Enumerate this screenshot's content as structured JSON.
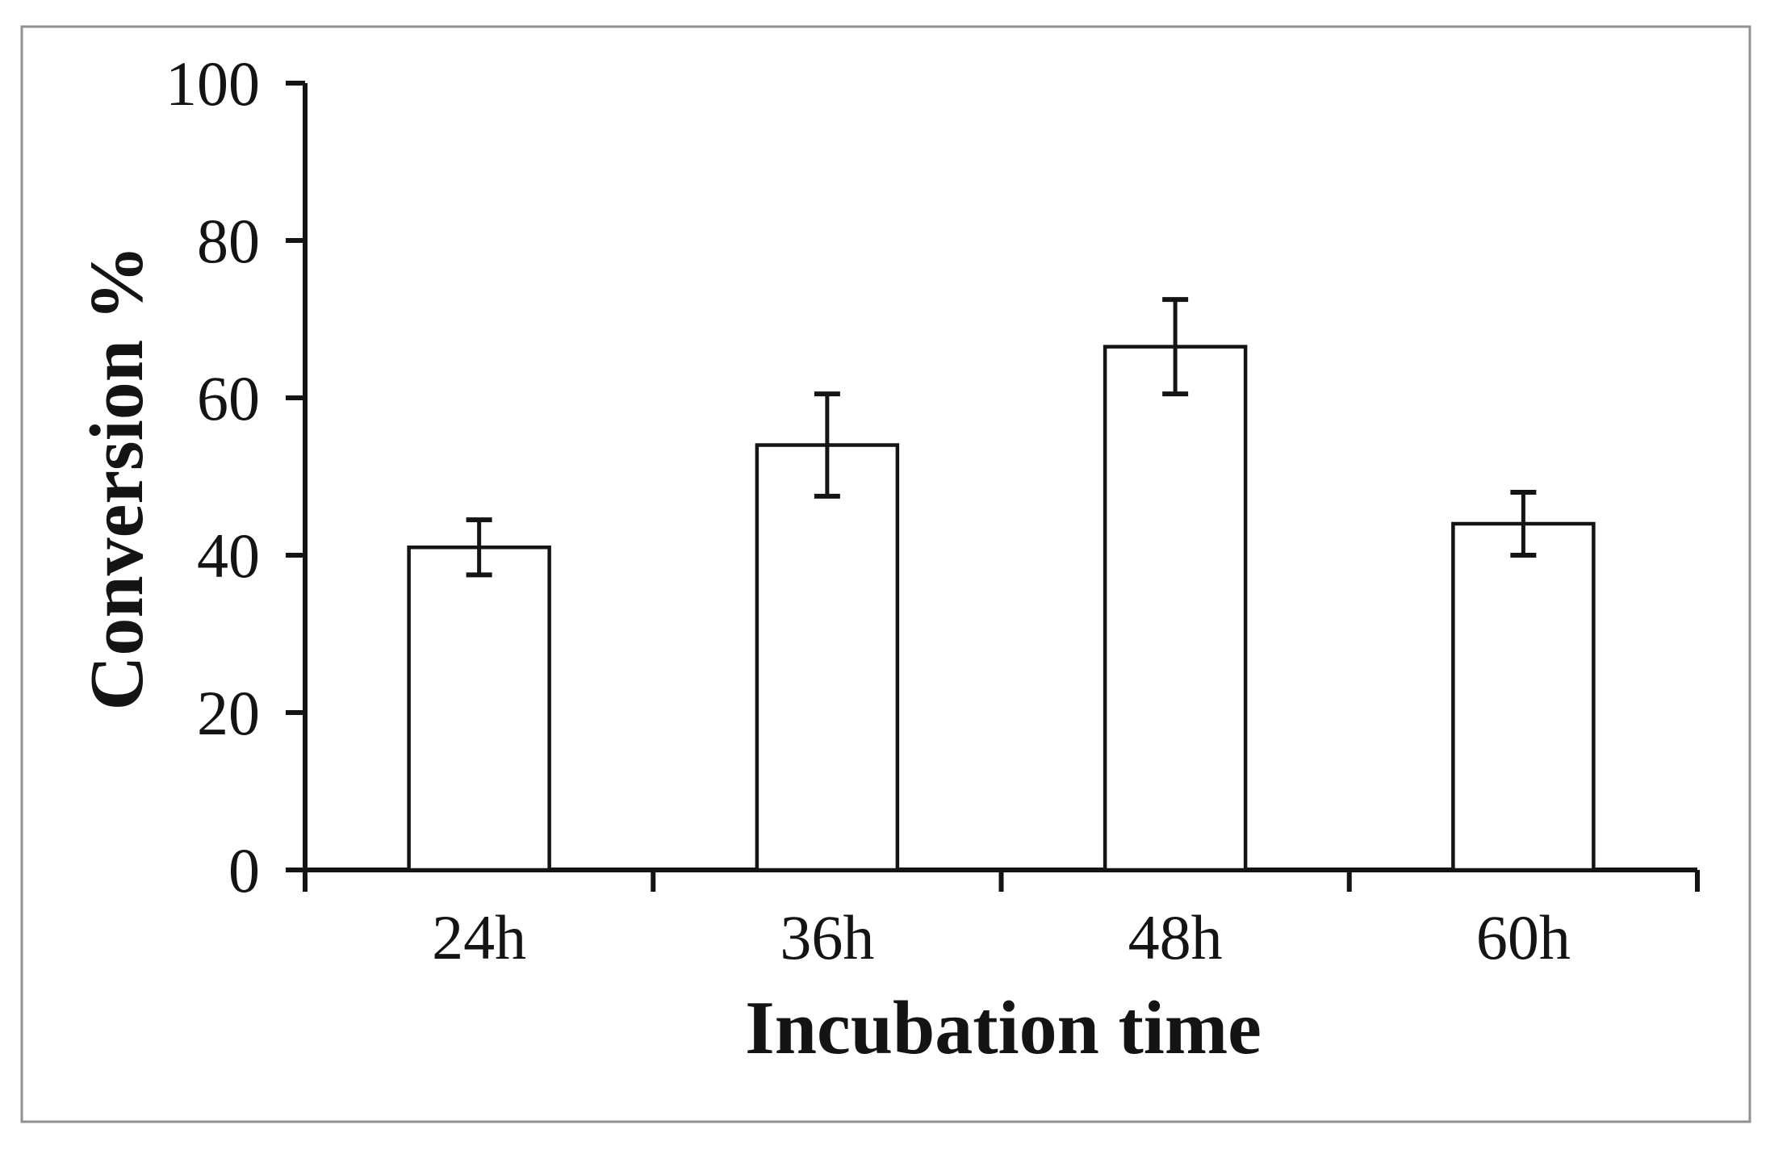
{
  "chart_data": {
    "type": "bar",
    "title": "",
    "xlabel": "Incubation time",
    "ylabel": "Conversion %",
    "categories": [
      "24h",
      "36h",
      "48h",
      "60h"
    ],
    "values": [
      41,
      54,
      66.5,
      44
    ],
    "error_bars": [
      3.5,
      6.5,
      6,
      4
    ],
    "ylim": [
      0,
      100
    ],
    "yticks": [
      0,
      20,
      40,
      60,
      80,
      100
    ],
    "grid": "off",
    "legend": "none",
    "bar_fill": "#ffffff",
    "stroke_color": "#141414",
    "frame_color": "#8e9292",
    "background_color": "#ffffff"
  }
}
